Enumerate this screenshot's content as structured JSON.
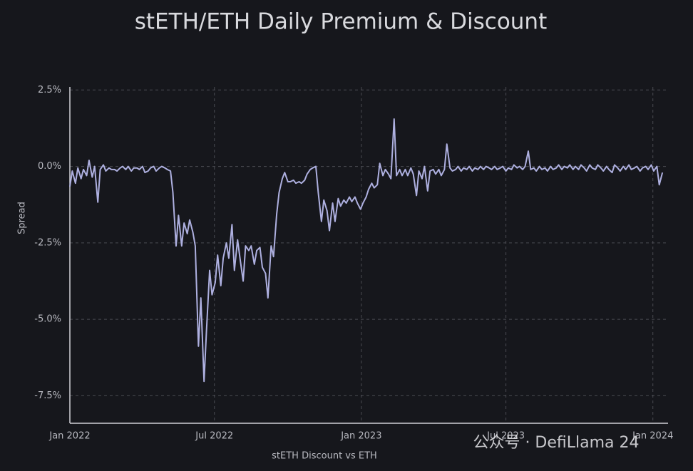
{
  "chart_data": {
    "type": "line",
    "title": "stETH/ETH Daily Premium & Discount",
    "x_label": "stETH Discount vs ETH",
    "y_label": "Spread",
    "annotation": "公众号 · DefiLlama 24",
    "color": "#aeb0e0",
    "grid": true,
    "xlim": [
      "2022-01-01",
      "2024-01-20"
    ],
    "xticks": [
      {
        "value": "2022-01-01",
        "label": "Jan 2022"
      },
      {
        "value": "2022-07-01",
        "label": "Jul 2022"
      },
      {
        "value": "2023-01-01",
        "label": "Jan 2023"
      },
      {
        "value": "2023-07-01",
        "label": "Jul 2023"
      },
      {
        "value": "2024-01-01",
        "label": "Jan 2024"
      }
    ],
    "ylim": [
      -8.4,
      2.6
    ],
    "yticks": [
      {
        "value": 2.5,
        "label": "2.5%"
      },
      {
        "value": 0,
        "label": "0.0%"
      },
      {
        "value": -2.5,
        "label": "-2.5%"
      },
      {
        "value": -5,
        "label": "-5.0%"
      },
      {
        "value": -7.5,
        "label": "-7.5%"
      }
    ],
    "x": [
      "2022-01-01",
      "2022-01-04",
      "2022-01-08",
      "2022-01-11",
      "2022-01-15",
      "2022-01-18",
      "2022-01-22",
      "2022-01-25",
      "2022-01-29",
      "2022-02-01",
      "2022-02-05",
      "2022-02-08",
      "2022-02-12",
      "2022-02-15",
      "2022-02-19",
      "2022-02-22",
      "2022-02-26",
      "2022-03-01",
      "2022-03-05",
      "2022-03-08",
      "2022-03-12",
      "2022-03-15",
      "2022-03-19",
      "2022-03-22",
      "2022-03-26",
      "2022-03-29",
      "2022-04-02",
      "2022-04-05",
      "2022-04-09",
      "2022-04-12",
      "2022-04-16",
      "2022-04-19",
      "2022-04-23",
      "2022-04-26",
      "2022-04-30",
      "2022-05-03",
      "2022-05-07",
      "2022-05-10",
      "2022-05-14",
      "2022-05-17",
      "2022-05-21",
      "2022-05-24",
      "2022-05-28",
      "2022-05-31",
      "2022-06-04",
      "2022-06-07",
      "2022-06-11",
      "2022-06-14",
      "2022-06-18",
      "2022-06-21",
      "2022-06-25",
      "2022-06-28",
      "2022-07-02",
      "2022-07-05",
      "2022-07-09",
      "2022-07-12",
      "2022-07-16",
      "2022-07-19",
      "2022-07-23",
      "2022-07-26",
      "2022-07-30",
      "2022-08-02",
      "2022-08-06",
      "2022-08-09",
      "2022-08-13",
      "2022-08-16",
      "2022-08-20",
      "2022-08-23",
      "2022-08-27",
      "2022-08-30",
      "2022-09-03",
      "2022-09-06",
      "2022-09-10",
      "2022-09-13",
      "2022-09-17",
      "2022-09-20",
      "2022-09-24",
      "2022-09-27",
      "2022-10-01",
      "2022-10-04",
      "2022-10-08",
      "2022-10-11",
      "2022-10-15",
      "2022-10-18",
      "2022-10-22",
      "2022-10-25",
      "2022-10-29",
      "2022-11-01",
      "2022-11-05",
      "2022-11-08",
      "2022-11-12",
      "2022-11-15",
      "2022-11-19",
      "2022-11-22",
      "2022-11-26",
      "2022-11-29",
      "2022-12-03",
      "2022-12-06",
      "2022-12-10",
      "2022-12-13",
      "2022-12-17",
      "2022-12-20",
      "2022-12-24",
      "2022-12-27",
      "2022-12-31",
      "2023-01-03",
      "2023-01-07",
      "2023-01-10",
      "2023-01-14",
      "2023-01-17",
      "2023-01-21",
      "2023-01-24",
      "2023-01-28",
      "2023-01-31",
      "2023-02-04",
      "2023-02-07",
      "2023-02-11",
      "2023-02-14",
      "2023-02-18",
      "2023-02-21",
      "2023-02-25",
      "2023-02-28",
      "2023-03-04",
      "2023-03-07",
      "2023-03-11",
      "2023-03-14",
      "2023-03-18",
      "2023-03-21",
      "2023-03-25",
      "2023-03-28",
      "2023-04-01",
      "2023-04-04",
      "2023-04-08",
      "2023-04-11",
      "2023-04-15",
      "2023-04-18",
      "2023-04-22",
      "2023-04-25",
      "2023-04-29",
      "2023-05-02",
      "2023-05-06",
      "2023-05-09",
      "2023-05-13",
      "2023-05-16",
      "2023-05-20",
      "2023-05-23",
      "2023-05-27",
      "2023-05-30",
      "2023-06-03",
      "2023-06-06",
      "2023-06-10",
      "2023-06-13",
      "2023-06-17",
      "2023-06-20",
      "2023-06-24",
      "2023-06-27",
      "2023-07-01",
      "2023-07-04",
      "2023-07-08",
      "2023-07-11",
      "2023-07-15",
      "2023-07-18",
      "2023-07-22",
      "2023-07-25",
      "2023-07-29",
      "2023-08-01",
      "2023-08-05",
      "2023-08-08",
      "2023-08-12",
      "2023-08-15",
      "2023-08-19",
      "2023-08-22",
      "2023-08-26",
      "2023-08-29",
      "2023-09-02",
      "2023-09-05",
      "2023-09-09",
      "2023-09-12",
      "2023-09-16",
      "2023-09-19",
      "2023-09-23",
      "2023-09-26",
      "2023-09-30",
      "2023-10-03",
      "2023-10-07",
      "2023-10-10",
      "2023-10-14",
      "2023-10-17",
      "2023-10-21",
      "2023-10-24",
      "2023-10-28",
      "2023-10-31",
      "2023-11-04",
      "2023-11-07",
      "2023-11-11",
      "2023-11-14",
      "2023-11-18",
      "2023-11-21",
      "2023-11-25",
      "2023-11-28",
      "2023-12-02",
      "2023-12-05",
      "2023-12-09",
      "2023-12-12",
      "2023-12-16",
      "2023-12-19",
      "2023-12-23",
      "2023-12-26",
      "2023-12-30",
      "2024-01-02",
      "2024-01-06",
      "2024-01-09",
      "2024-01-13"
    ],
    "values": [
      -0.66,
      -0.15,
      -0.55,
      -0.05,
      -0.4,
      -0.1,
      -0.3,
      0.2,
      -0.35,
      0,
      -1.17,
      -0.1,
      0.05,
      -0.15,
      -0.05,
      -0.1,
      -0.1,
      -0.15,
      -0.05,
      0,
      -0.1,
      0,
      -0.15,
      -0.05,
      -0.05,
      -0.1,
      0,
      -0.2,
      -0.15,
      -0.05,
      0,
      -0.15,
      -0.05,
      0,
      -0.05,
      -0.1,
      -0.15,
      -0.85,
      -2.6,
      -1.6,
      -2.6,
      -1.85,
      -2.2,
      -1.75,
      -2.15,
      -2.6,
      -5.88,
      -4.3,
      -7.03,
      -5.4,
      -3.4,
      -4.2,
      -3.8,
      -2.9,
      -3.9,
      -3,
      -2.5,
      -3,
      -1.9,
      -3.4,
      -2.4,
      -3,
      -3.75,
      -2.6,
      -2.75,
      -2.6,
      -3.2,
      -2.75,
      -2.65,
      -3.3,
      -3.5,
      -4.3,
      -2.6,
      -2.95,
      -1.55,
      -0.85,
      -0.4,
      -0.2,
      -0.5,
      -0.5,
      -0.45,
      -0.55,
      -0.5,
      -0.55,
      -0.45,
      -0.25,
      -0.1,
      -0.05,
      0,
      -0.85,
      -1.8,
      -1.1,
      -1.45,
      -2.1,
      -1.2,
      -1.8,
      -1.05,
      -1.3,
      -1.1,
      -1.2,
      -1,
      -1.15,
      -1,
      -1.2,
      -1.4,
      -1.2,
      -1,
      -0.75,
      -0.55,
      -0.7,
      -0.6,
      0.1,
      -0.3,
      -0.1,
      -0.25,
      -0.4,
      1.55,
      -0.3,
      -0.1,
      -0.3,
      -0.1,
      -0.3,
      -0.05,
      -0.25,
      -0.95,
      -0.15,
      -0.4,
      0,
      -0.8,
      -0.15,
      -0.1,
      -0.25,
      -0.1,
      -0.3,
      -0.1,
      0.73,
      -0.05,
      -0.15,
      -0.1,
      0,
      -0.15,
      -0.05,
      -0.1,
      0,
      -0.15,
      -0.05,
      -0.1,
      0,
      -0.1,
      0,
      -0.05,
      -0.1,
      0,
      -0.1,
      -0.05,
      0,
      -0.15,
      -0.05,
      -0.1,
      0.05,
      -0.05,
      0,
      -0.1,
      0,
      0.5,
      -0.1,
      -0.05,
      -0.15,
      0,
      -0.1,
      -0.05,
      -0.15,
      0,
      -0.1,
      -0.05,
      0.05,
      -0.1,
      0,
      -0.05,
      0.05,
      -0.1,
      0,
      -0.1,
      0.05,
      -0.05,
      -0.15,
      0.05,
      -0.05,
      -0.1,
      0.05,
      -0.05,
      -0.15,
      0,
      -0.1,
      -0.2,
      0.05,
      -0.05,
      -0.15,
      0,
      -0.1,
      0.05,
      -0.1,
      -0.05,
      0,
      -0.15,
      -0.05,
      0,
      -0.1,
      0.05,
      -0.15,
      0,
      -0.6,
      -0.2
    ]
  }
}
